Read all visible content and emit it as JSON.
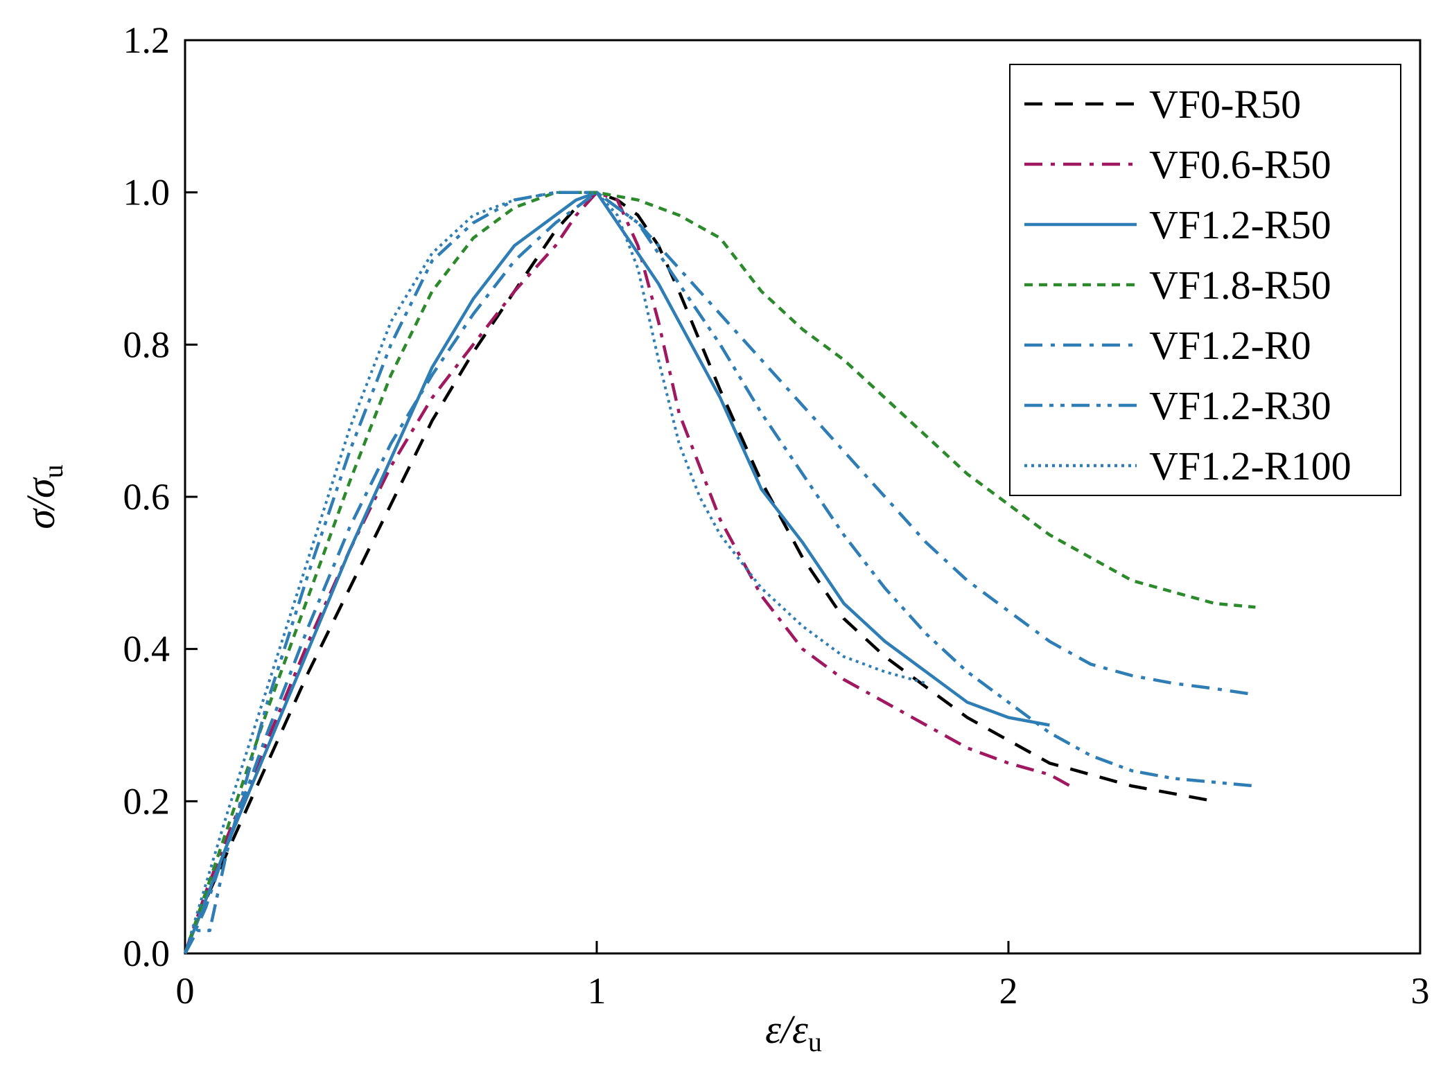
{
  "chart_data": {
    "type": "line",
    "title": "",
    "xlabel": {
      "main": "ε/ε",
      "sub": "u"
    },
    "ylabel": {
      "main": "σ/σ",
      "sub": "u"
    },
    "xlim": [
      0,
      3
    ],
    "ylim": [
      0,
      1.2
    ],
    "x_ticks": [
      "0",
      "1",
      "2",
      "3"
    ],
    "y_ticks": [
      "0.0",
      "0.2",
      "0.4",
      "0.6",
      "0.8",
      "1.0",
      "1.2"
    ],
    "grid": false,
    "legend_position": "top-right",
    "series": [
      {
        "name": "VF0-R50",
        "color": "#000000",
        "dash": "dashed",
        "points": [
          [
            0,
            0
          ],
          [
            0.05,
            0.07
          ],
          [
            0.1,
            0.13
          ],
          [
            0.2,
            0.25
          ],
          [
            0.3,
            0.37
          ],
          [
            0.4,
            0.48
          ],
          [
            0.5,
            0.59
          ],
          [
            0.6,
            0.7
          ],
          [
            0.7,
            0.79
          ],
          [
            0.8,
            0.87
          ],
          [
            0.9,
            0.95
          ],
          [
            0.95,
            0.98
          ],
          [
            1.0,
            1.0
          ],
          [
            1.05,
            0.99
          ],
          [
            1.1,
            0.97
          ],
          [
            1.15,
            0.93
          ],
          [
            1.2,
            0.87
          ],
          [
            1.3,
            0.74
          ],
          [
            1.4,
            0.62
          ],
          [
            1.5,
            0.52
          ],
          [
            1.6,
            0.44
          ],
          [
            1.7,
            0.39
          ],
          [
            1.8,
            0.35
          ],
          [
            1.9,
            0.31
          ],
          [
            2.0,
            0.28
          ],
          [
            2.1,
            0.25
          ],
          [
            2.2,
            0.235
          ],
          [
            2.3,
            0.22
          ],
          [
            2.4,
            0.21
          ],
          [
            2.5,
            0.2
          ]
        ]
      },
      {
        "name": "VF0.6-R50",
        "color": "#A0185F",
        "dash": "dashdot",
        "points": [
          [
            0,
            0
          ],
          [
            0.05,
            0.08
          ],
          [
            0.1,
            0.15
          ],
          [
            0.2,
            0.28
          ],
          [
            0.3,
            0.41
          ],
          [
            0.4,
            0.53
          ],
          [
            0.5,
            0.64
          ],
          [
            0.6,
            0.73
          ],
          [
            0.7,
            0.8
          ],
          [
            0.8,
            0.87
          ],
          [
            0.9,
            0.93
          ],
          [
            0.95,
            0.97
          ],
          [
            1.0,
            1.0
          ],
          [
            1.05,
            0.99
          ],
          [
            1.1,
            0.93
          ],
          [
            1.15,
            0.83
          ],
          [
            1.2,
            0.71
          ],
          [
            1.3,
            0.57
          ],
          [
            1.4,
            0.47
          ],
          [
            1.5,
            0.4
          ],
          [
            1.6,
            0.36
          ],
          [
            1.7,
            0.33
          ],
          [
            1.8,
            0.3
          ],
          [
            1.9,
            0.27
          ],
          [
            2.0,
            0.25
          ],
          [
            2.1,
            0.235
          ],
          [
            2.15,
            0.22
          ]
        ]
      },
      {
        "name": "VF1.2-R50",
        "color": "#2E7DB5",
        "dash": "solid",
        "points": [
          [
            0,
            0
          ],
          [
            0.05,
            0.07
          ],
          [
            0.1,
            0.14
          ],
          [
            0.2,
            0.27
          ],
          [
            0.3,
            0.4
          ],
          [
            0.4,
            0.53
          ],
          [
            0.5,
            0.65
          ],
          [
            0.6,
            0.77
          ],
          [
            0.7,
            0.86
          ],
          [
            0.8,
            0.93
          ],
          [
            0.9,
            0.97
          ],
          [
            0.95,
            0.99
          ],
          [
            1.0,
            1.0
          ],
          [
            1.05,
            0.96
          ],
          [
            1.1,
            0.92
          ],
          [
            1.15,
            0.88
          ],
          [
            1.2,
            0.83
          ],
          [
            1.3,
            0.73
          ],
          [
            1.4,
            0.61
          ],
          [
            1.5,
            0.54
          ],
          [
            1.6,
            0.46
          ],
          [
            1.7,
            0.41
          ],
          [
            1.8,
            0.37
          ],
          [
            1.9,
            0.33
          ],
          [
            2.0,
            0.31
          ],
          [
            2.05,
            0.305
          ],
          [
            2.1,
            0.3
          ]
        ]
      },
      {
        "name": "VF1.8-R50",
        "color": "#2C8A2C",
        "dash": "short",
        "points": [
          [
            0,
            0
          ],
          [
            0.05,
            0.08
          ],
          [
            0.1,
            0.16
          ],
          [
            0.2,
            0.32
          ],
          [
            0.3,
            0.47
          ],
          [
            0.4,
            0.62
          ],
          [
            0.5,
            0.76
          ],
          [
            0.6,
            0.87
          ],
          [
            0.7,
            0.94
          ],
          [
            0.8,
            0.98
          ],
          [
            0.9,
            1.0
          ],
          [
            1.0,
            1.0
          ],
          [
            1.1,
            0.99
          ],
          [
            1.2,
            0.97
          ],
          [
            1.3,
            0.94
          ],
          [
            1.4,
            0.87
          ],
          [
            1.5,
            0.82
          ],
          [
            1.6,
            0.78
          ],
          [
            1.7,
            0.73
          ],
          [
            1.8,
            0.68
          ],
          [
            1.9,
            0.63
          ],
          [
            2.0,
            0.59
          ],
          [
            2.1,
            0.55
          ],
          [
            2.2,
            0.52
          ],
          [
            2.3,
            0.49
          ],
          [
            2.4,
            0.475
          ],
          [
            2.5,
            0.46
          ],
          [
            2.6,
            0.455
          ]
        ]
      },
      {
        "name": "VF1.2-R0",
        "color": "#2E7DB5",
        "dash": "dashdot",
        "points": [
          [
            0,
            0
          ],
          [
            0.05,
            0.06
          ],
          [
            0.1,
            0.14
          ],
          [
            0.2,
            0.29
          ],
          [
            0.3,
            0.43
          ],
          [
            0.4,
            0.56
          ],
          [
            0.5,
            0.67
          ],
          [
            0.6,
            0.76
          ],
          [
            0.7,
            0.84
          ],
          [
            0.8,
            0.91
          ],
          [
            0.9,
            0.96
          ],
          [
            1.0,
            1.0
          ],
          [
            1.1,
            0.96
          ],
          [
            1.2,
            0.9
          ],
          [
            1.3,
            0.84
          ],
          [
            1.4,
            0.78
          ],
          [
            1.5,
            0.72
          ],
          [
            1.6,
            0.66
          ],
          [
            1.7,
            0.6
          ],
          [
            1.8,
            0.54
          ],
          [
            1.9,
            0.49
          ],
          [
            2.0,
            0.45
          ],
          [
            2.1,
            0.41
          ],
          [
            2.2,
            0.38
          ],
          [
            2.3,
            0.365
          ],
          [
            2.4,
            0.355
          ],
          [
            2.5,
            0.348
          ],
          [
            2.6,
            0.34
          ]
        ]
      },
      {
        "name": "VF1.2-R30",
        "color": "#2E7DB5",
        "dash": "dashdotdot",
        "points": [
          [
            0,
            0
          ],
          [
            0.03,
            0.03
          ],
          [
            0.06,
            0.03
          ],
          [
            0.1,
            0.13
          ],
          [
            0.2,
            0.33
          ],
          [
            0.3,
            0.5
          ],
          [
            0.4,
            0.66
          ],
          [
            0.5,
            0.8
          ],
          [
            0.6,
            0.91
          ],
          [
            0.7,
            0.96
          ],
          [
            0.8,
            0.99
          ],
          [
            0.9,
            1.0
          ],
          [
            1.0,
            1.0
          ],
          [
            1.1,
            0.96
          ],
          [
            1.2,
            0.88
          ],
          [
            1.3,
            0.8
          ],
          [
            1.4,
            0.71
          ],
          [
            1.5,
            0.63
          ],
          [
            1.6,
            0.55
          ],
          [
            1.7,
            0.48
          ],
          [
            1.8,
            0.42
          ],
          [
            1.9,
            0.37
          ],
          [
            2.0,
            0.33
          ],
          [
            2.1,
            0.29
          ],
          [
            2.2,
            0.26
          ],
          [
            2.3,
            0.24
          ],
          [
            2.4,
            0.23
          ],
          [
            2.5,
            0.225
          ],
          [
            2.6,
            0.22
          ]
        ]
      },
      {
        "name": "VF1.2-R100",
        "color": "#2E7DB5",
        "dash": "dotted",
        "points": [
          [
            0,
            0
          ],
          [
            0.05,
            0.09
          ],
          [
            0.1,
            0.18
          ],
          [
            0.2,
            0.35
          ],
          [
            0.3,
            0.52
          ],
          [
            0.4,
            0.69
          ],
          [
            0.5,
            0.83
          ],
          [
            0.6,
            0.92
          ],
          [
            0.7,
            0.97
          ],
          [
            0.8,
            0.99
          ],
          [
            0.9,
            1.0
          ],
          [
            1.0,
            1.0
          ],
          [
            1.05,
            0.97
          ],
          [
            1.1,
            0.9
          ],
          [
            1.15,
            0.78
          ],
          [
            1.2,
            0.67
          ],
          [
            1.25,
            0.6
          ],
          [
            1.3,
            0.55
          ],
          [
            1.4,
            0.48
          ],
          [
            1.5,
            0.43
          ],
          [
            1.6,
            0.39
          ],
          [
            1.7,
            0.37
          ],
          [
            1.8,
            0.355
          ]
        ]
      }
    ]
  }
}
